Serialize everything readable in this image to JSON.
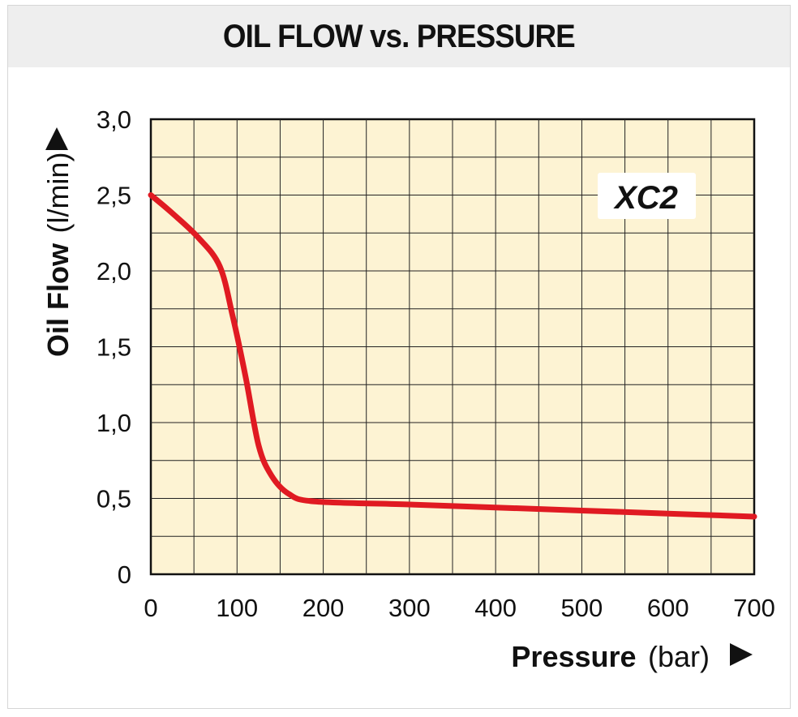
{
  "chart_data": {
    "type": "line",
    "title": "OIL FLOW vs. PRESSURE",
    "xlabel": "Pressure",
    "xlabel_unit": "(bar)",
    "ylabel": "Oil Flow",
    "ylabel_unit": "(l/min)",
    "xlim": [
      0,
      700
    ],
    "ylim": [
      0,
      3.0
    ],
    "x_ticks": [
      0,
      100,
      200,
      300,
      400,
      500,
      600,
      700
    ],
    "y_ticks": [
      0,
      0.5,
      1.0,
      1.5,
      2.0,
      2.5,
      3.0
    ],
    "x_tick_labels": [
      "0",
      "100",
      "200",
      "300",
      "400",
      "500",
      "600",
      "700"
    ],
    "y_tick_labels": [
      "0",
      "0,5",
      "1,0",
      "1,5",
      "2,0",
      "2,5",
      "3,0"
    ],
    "grid": true,
    "series": [
      {
        "name": "XC2",
        "color": "#e01a22",
        "x": [
          0,
          25,
          55,
          80,
          95,
          110,
          125,
          140,
          160,
          190,
          300,
          400,
          500,
          600,
          700
        ],
        "y": [
          2.5,
          2.38,
          2.22,
          2.03,
          1.7,
          1.3,
          0.85,
          0.65,
          0.53,
          0.48,
          0.46,
          0.44,
          0.42,
          0.4,
          0.38
        ]
      }
    ],
    "colors": {
      "plot_background": "#fdf3d3",
      "grid": "#222222",
      "title_background": "#eeeeee"
    }
  }
}
